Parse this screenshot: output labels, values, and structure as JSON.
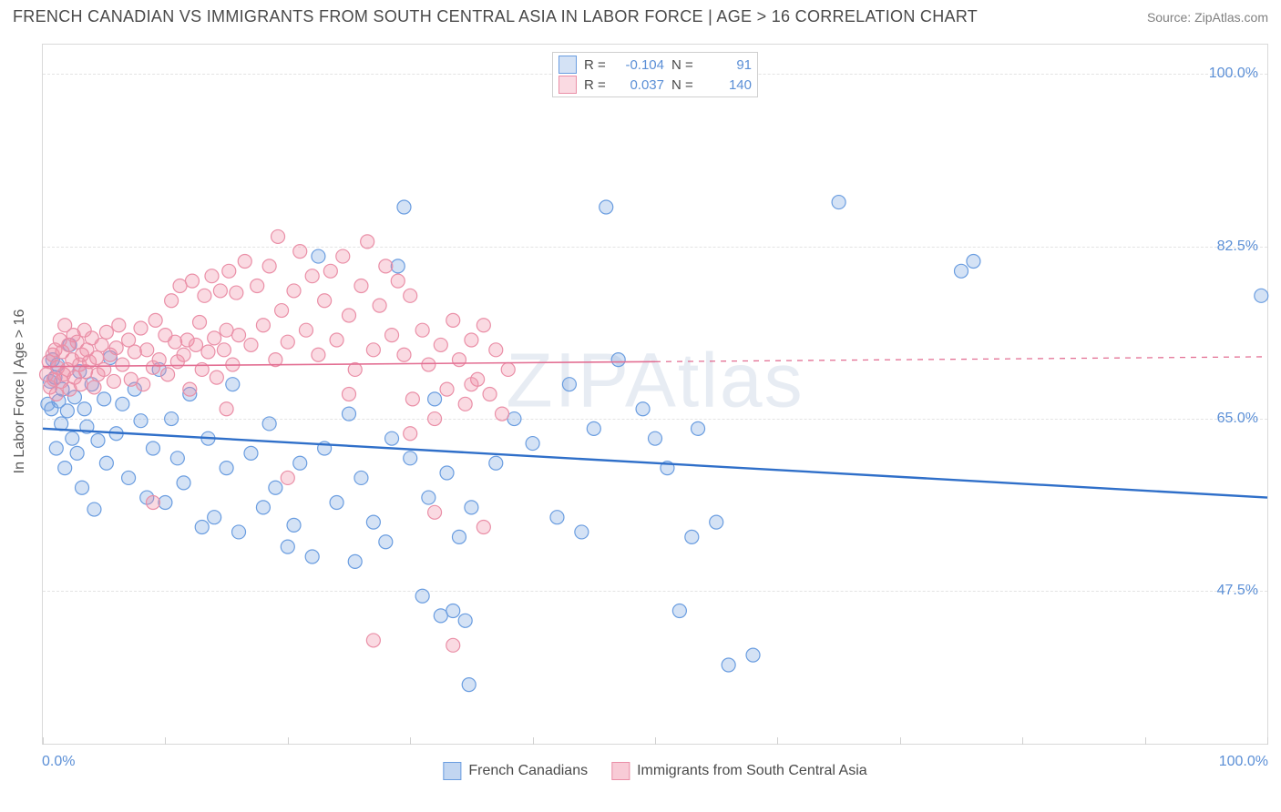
{
  "title": "FRENCH CANADIAN VS IMMIGRANTS FROM SOUTH CENTRAL ASIA IN LABOR FORCE | AGE > 16 CORRELATION CHART",
  "source": "Source: ZipAtlas.com",
  "watermark": "ZIPAtlas",
  "yaxis_title": "In Labor Force | Age > 16",
  "chart": {
    "type": "scatter",
    "xlim": [
      0,
      100
    ],
    "ylim": [
      32,
      103
    ],
    "x_ticks": [
      0,
      10,
      20,
      30,
      40,
      50,
      60,
      70,
      80,
      90,
      100
    ],
    "x_tick_labels": {
      "0": "0.0%",
      "100": "100.0%"
    },
    "y_ticks": [
      47.5,
      65.0,
      82.5,
      100.0
    ],
    "y_tick_labels": [
      "47.5%",
      "65.0%",
      "82.5%",
      "100.0%"
    ],
    "grid_color": "#e3e3e3",
    "background_color": "#ffffff",
    "border_color": "#d9d9d9",
    "marker_radius": 7.5,
    "marker_stroke_width": 1.2,
    "series": [
      {
        "name": "French Canadians",
        "fill": "rgba(120,165,225,0.32)",
        "stroke": "#6a9de0",
        "trend_color": "#2f6fc9",
        "trend_width": 2.4,
        "trend_dash_after_x": 100,
        "R": "-0.104",
        "N": "91",
        "trend": {
          "x1": 0,
          "y1": 64.0,
          "x2": 100,
          "y2": 57.0
        },
        "points": [
          [
            0.4,
            66.5
          ],
          [
            0.6,
            68.8
          ],
          [
            0.7,
            66.0
          ],
          [
            0.8,
            71.0
          ],
          [
            1.0,
            69.2
          ],
          [
            1.1,
            62.0
          ],
          [
            1.2,
            70.5
          ],
          [
            1.3,
            66.8
          ],
          [
            1.5,
            64.5
          ],
          [
            1.6,
            68.0
          ],
          [
            1.8,
            60.0
          ],
          [
            2.0,
            65.8
          ],
          [
            2.2,
            72.5
          ],
          [
            2.4,
            63.0
          ],
          [
            2.6,
            67.2
          ],
          [
            2.8,
            61.5
          ],
          [
            3.0,
            69.8
          ],
          [
            3.2,
            58.0
          ],
          [
            3.4,
            66.0
          ],
          [
            3.6,
            64.2
          ],
          [
            4.0,
            68.5
          ],
          [
            4.2,
            55.8
          ],
          [
            4.5,
            62.8
          ],
          [
            5.0,
            67.0
          ],
          [
            5.2,
            60.5
          ],
          [
            5.5,
            71.2
          ],
          [
            6.0,
            63.5
          ],
          [
            6.5,
            66.5
          ],
          [
            7.0,
            59.0
          ],
          [
            7.5,
            68.0
          ],
          [
            8.0,
            64.8
          ],
          [
            8.5,
            57.0
          ],
          [
            9.0,
            62.0
          ],
          [
            9.5,
            70.0
          ],
          [
            10.0,
            56.5
          ],
          [
            10.5,
            65.0
          ],
          [
            11.0,
            61.0
          ],
          [
            11.5,
            58.5
          ],
          [
            12.0,
            67.5
          ],
          [
            13.0,
            54.0
          ],
          [
            13.5,
            63.0
          ],
          [
            14.0,
            55.0
          ],
          [
            15.0,
            60.0
          ],
          [
            15.5,
            68.5
          ],
          [
            16.0,
            53.5
          ],
          [
            17.0,
            61.5
          ],
          [
            18.0,
            56.0
          ],
          [
            18.5,
            64.5
          ],
          [
            19.0,
            58.0
          ],
          [
            20.0,
            52.0
          ],
          [
            20.5,
            54.2
          ],
          [
            21.0,
            60.5
          ],
          [
            22.0,
            51.0
          ],
          [
            22.5,
            81.5
          ],
          [
            23.0,
            62.0
          ],
          [
            24.0,
            56.5
          ],
          [
            25.0,
            65.5
          ],
          [
            25.5,
            50.5
          ],
          [
            26.0,
            59.0
          ],
          [
            27.0,
            54.5
          ],
          [
            28.0,
            52.5
          ],
          [
            28.5,
            63.0
          ],
          [
            29.0,
            80.5
          ],
          [
            29.5,
            86.5
          ],
          [
            30.0,
            61.0
          ],
          [
            31.0,
            47.0
          ],
          [
            31.5,
            57.0
          ],
          [
            32.0,
            67.0
          ],
          [
            32.5,
            45.0
          ],
          [
            33.0,
            59.5
          ],
          [
            33.5,
            45.5
          ],
          [
            34.0,
            53.0
          ],
          [
            34.5,
            44.5
          ],
          [
            34.8,
            38.0
          ],
          [
            35.0,
            56.0
          ],
          [
            37.0,
            60.5
          ],
          [
            38.5,
            65.0
          ],
          [
            40.0,
            62.5
          ],
          [
            42.0,
            55.0
          ],
          [
            43.0,
            68.5
          ],
          [
            44.0,
            53.5
          ],
          [
            45.0,
            64.0
          ],
          [
            46.0,
            86.5
          ],
          [
            47.0,
            71.0
          ],
          [
            49.0,
            66.0
          ],
          [
            50.0,
            63.0
          ],
          [
            51.0,
            60.0
          ],
          [
            52.0,
            45.5
          ],
          [
            53.0,
            53.0
          ],
          [
            53.5,
            64.0
          ],
          [
            55.0,
            54.5
          ],
          [
            56.0,
            40.0
          ],
          [
            58.0,
            41.0
          ],
          [
            65.0,
            87.0
          ],
          [
            75.0,
            80.0
          ],
          [
            76.0,
            81.0
          ],
          [
            99.5,
            77.5
          ]
        ]
      },
      {
        "name": "Immigrants from South Central Asia",
        "fill": "rgba(240,140,165,0.32)",
        "stroke": "#ea8fa7",
        "trend_color": "#e36f93",
        "trend_width": 1.6,
        "trend_dash_after_x": 50,
        "R": "0.037",
        "N": "140",
        "trend": {
          "x1": 0,
          "y1": 70.3,
          "x2": 100,
          "y2": 71.3
        },
        "points": [
          [
            0.3,
            69.5
          ],
          [
            0.5,
            70.8
          ],
          [
            0.6,
            68.2
          ],
          [
            0.8,
            71.5
          ],
          [
            0.9,
            69.0
          ],
          [
            1.0,
            72.0
          ],
          [
            1.1,
            67.5
          ],
          [
            1.2,
            70.2
          ],
          [
            1.4,
            73.0
          ],
          [
            1.5,
            68.8
          ],
          [
            1.6,
            71.8
          ],
          [
            1.7,
            69.5
          ],
          [
            1.8,
            74.5
          ],
          [
            2.0,
            70.0
          ],
          [
            2.1,
            72.5
          ],
          [
            2.2,
            68.0
          ],
          [
            2.4,
            71.0
          ],
          [
            2.5,
            73.5
          ],
          [
            2.6,
            69.2
          ],
          [
            2.8,
            72.8
          ],
          [
            3.0,
            70.5
          ],
          [
            3.1,
            68.5
          ],
          [
            3.2,
            71.5
          ],
          [
            3.4,
            74.0
          ],
          [
            3.5,
            69.8
          ],
          [
            3.6,
            72.0
          ],
          [
            3.8,
            70.8
          ],
          [
            4.0,
            73.2
          ],
          [
            4.2,
            68.2
          ],
          [
            4.4,
            71.2
          ],
          [
            4.5,
            69.5
          ],
          [
            4.8,
            72.5
          ],
          [
            5.0,
            70.0
          ],
          [
            5.2,
            73.8
          ],
          [
            5.5,
            71.5
          ],
          [
            5.8,
            68.8
          ],
          [
            6.0,
            72.2
          ],
          [
            6.2,
            74.5
          ],
          [
            6.5,
            70.5
          ],
          [
            7.0,
            73.0
          ],
          [
            7.2,
            69.0
          ],
          [
            7.5,
            71.8
          ],
          [
            8.0,
            74.2
          ],
          [
            8.2,
            68.5
          ],
          [
            8.5,
            72.0
          ],
          [
            9.0,
            70.2
          ],
          [
            9.2,
            75.0
          ],
          [
            9.5,
            71.0
          ],
          [
            10.0,
            73.5
          ],
          [
            10.2,
            69.5
          ],
          [
            10.5,
            77.0
          ],
          [
            10.8,
            72.8
          ],
          [
            11.0,
            70.8
          ],
          [
            11.2,
            78.5
          ],
          [
            11.5,
            71.5
          ],
          [
            11.8,
            73.0
          ],
          [
            12.0,
            68.0
          ],
          [
            12.2,
            79.0
          ],
          [
            12.5,
            72.5
          ],
          [
            12.8,
            74.8
          ],
          [
            13.0,
            70.0
          ],
          [
            13.2,
            77.5
          ],
          [
            13.5,
            71.8
          ],
          [
            13.8,
            79.5
          ],
          [
            14.0,
            73.2
          ],
          [
            14.2,
            69.2
          ],
          [
            14.5,
            78.0
          ],
          [
            14.8,
            72.0
          ],
          [
            15.0,
            74.0
          ],
          [
            15.2,
            80.0
          ],
          [
            15.5,
            70.5
          ],
          [
            15.8,
            77.8
          ],
          [
            16.0,
            73.5
          ],
          [
            16.5,
            81.0
          ],
          [
            17.0,
            72.5
          ],
          [
            17.5,
            78.5
          ],
          [
            18.0,
            74.5
          ],
          [
            18.5,
            80.5
          ],
          [
            19.0,
            71.0
          ],
          [
            19.2,
            83.5
          ],
          [
            19.5,
            76.0
          ],
          [
            20.0,
            72.8
          ],
          [
            20.5,
            78.0
          ],
          [
            21.0,
            82.0
          ],
          [
            21.5,
            74.0
          ],
          [
            22.0,
            79.5
          ],
          [
            22.5,
            71.5
          ],
          [
            23.0,
            77.0
          ],
          [
            23.5,
            80.0
          ],
          [
            24.0,
            73.0
          ],
          [
            24.5,
            81.5
          ],
          [
            25.0,
            75.5
          ],
          [
            25.5,
            70.0
          ],
          [
            26.0,
            78.5
          ],
          [
            26.5,
            83.0
          ],
          [
            27.0,
            72.0
          ],
          [
            27.5,
            76.5
          ],
          [
            28.0,
            80.5
          ],
          [
            28.5,
            73.5
          ],
          [
            29.0,
            79.0
          ],
          [
            29.5,
            71.5
          ],
          [
            30.0,
            77.5
          ],
          [
            30.2,
            67.0
          ],
          [
            31.0,
            74.0
          ],
          [
            31.5,
            70.5
          ],
          [
            32.0,
            65.0
          ],
          [
            32.5,
            72.5
          ],
          [
            33.0,
            68.0
          ],
          [
            33.5,
            75.0
          ],
          [
            34.0,
            71.0
          ],
          [
            34.5,
            66.5
          ],
          [
            35.0,
            73.0
          ],
          [
            35.5,
            69.0
          ],
          [
            36.0,
            74.5
          ],
          [
            36.5,
            67.5
          ],
          [
            37.0,
            72.0
          ],
          [
            38.0,
            70.0
          ],
          [
            9.0,
            56.5
          ],
          [
            15.0,
            66.0
          ],
          [
            20.0,
            59.0
          ],
          [
            25.0,
            67.5
          ],
          [
            27.0,
            42.5
          ],
          [
            30.0,
            63.5
          ],
          [
            32.0,
            55.5
          ],
          [
            33.5,
            42.0
          ],
          [
            35.0,
            68.5
          ],
          [
            36.0,
            54.0
          ],
          [
            37.5,
            65.5
          ]
        ]
      }
    ]
  },
  "legend_top_labels": {
    "R": "R =",
    "N": "N ="
  },
  "legend_bottom": [
    {
      "label": "French Canadians",
      "fill": "rgba(120,165,225,0.45)",
      "stroke": "#6a9de0"
    },
    {
      "label": "Immigrants from South Central Asia",
      "fill": "rgba(240,140,165,0.45)",
      "stroke": "#ea8fa7"
    }
  ],
  "colors": {
    "title_text": "#4a4a4a",
    "axis_value_text": "#5b8fd6",
    "source_text": "#808080"
  }
}
